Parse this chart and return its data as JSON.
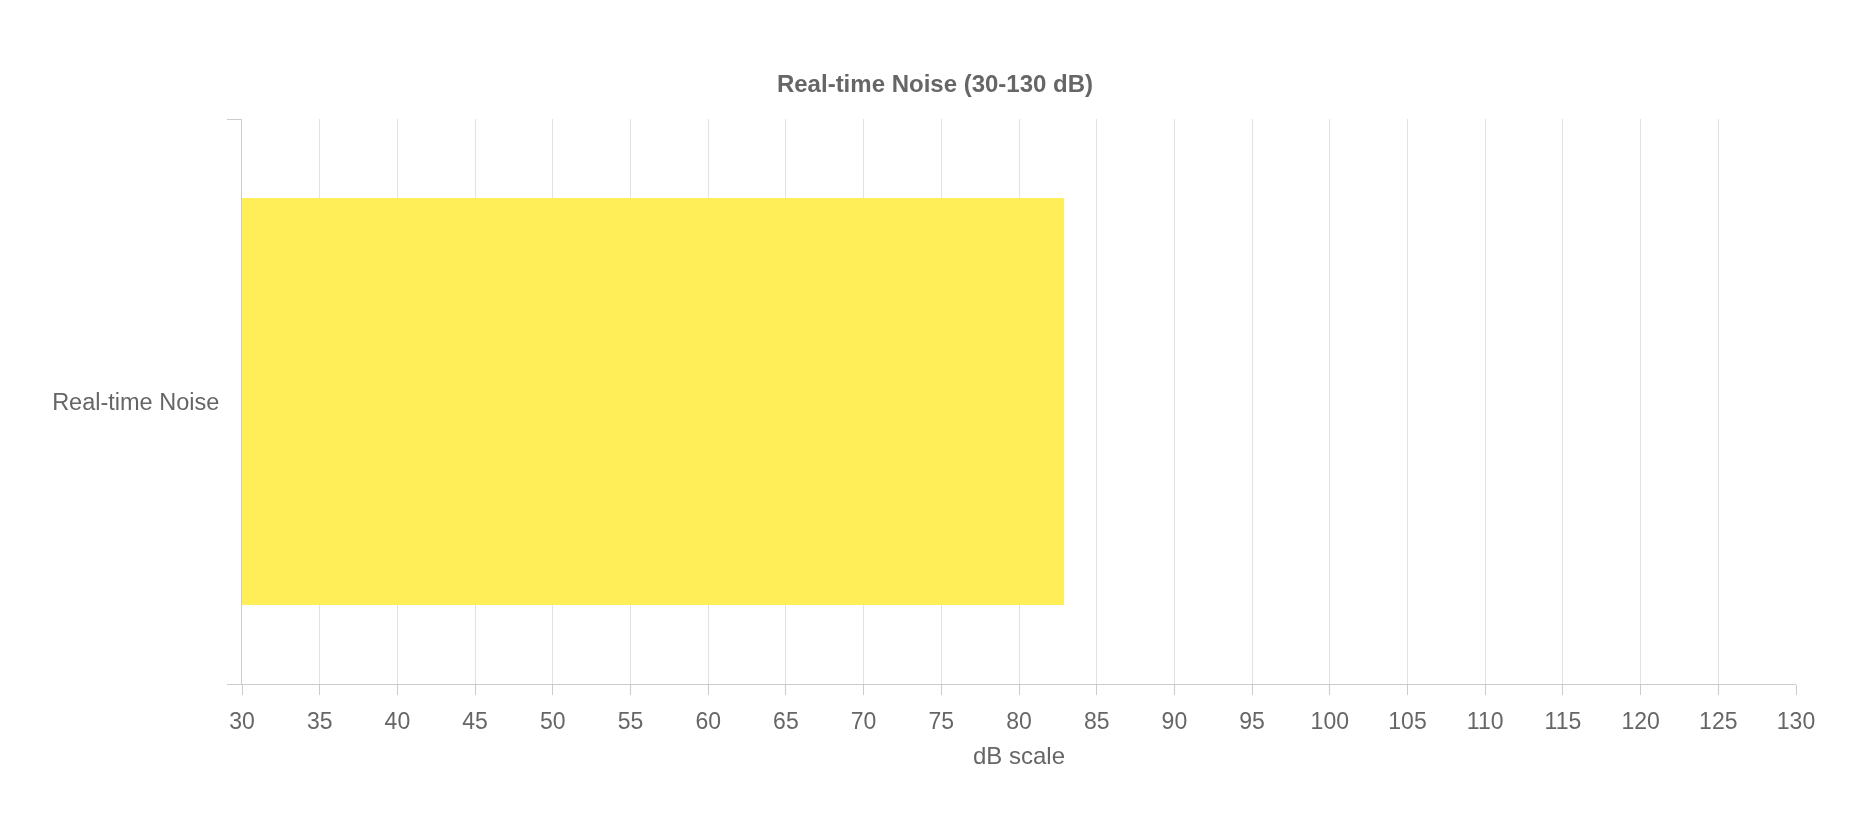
{
  "chart_data": {
    "type": "bar",
    "orientation": "horizontal",
    "title": "Real-time Noise (30-130 dB)",
    "xlabel": "dB scale",
    "categories": [
      "Real-time Noise"
    ],
    "values": [
      82.9
    ],
    "color": "#ffee58",
    "xlim": [
      30,
      130
    ],
    "xticks": [
      30,
      35,
      40,
      45,
      50,
      55,
      60,
      65,
      70,
      75,
      80,
      85,
      90,
      95,
      100,
      105,
      110,
      115,
      120,
      125,
      130
    ],
    "grid": true
  }
}
